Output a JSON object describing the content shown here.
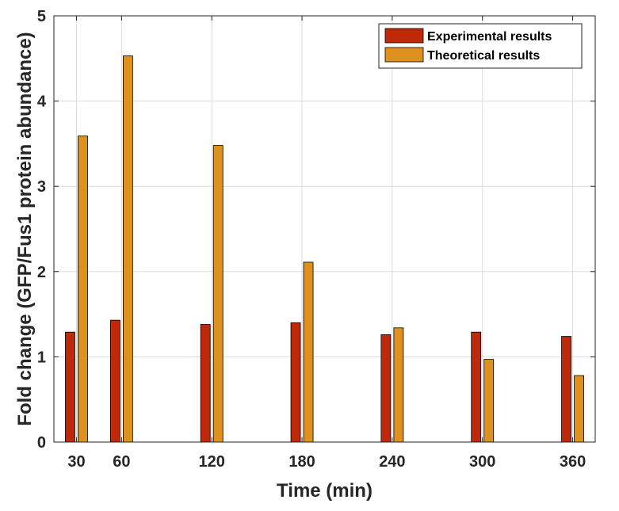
{
  "chart_data": {
    "type": "bar",
    "categories": [
      "30",
      "60",
      "120",
      "180",
      "240",
      "300",
      "360"
    ],
    "x": [
      30,
      60,
      120,
      180,
      240,
      300,
      360
    ],
    "series": [
      {
        "name": "Experimental results",
        "color": "#c0280a",
        "values": [
          1.29,
          1.43,
          1.38,
          1.4,
          1.26,
          1.29,
          1.24
        ]
      },
      {
        "name": "Theoretical results",
        "color": "#de911e",
        "values": [
          3.59,
          4.53,
          3.48,
          2.11,
          1.34,
          0.97,
          0.78
        ]
      }
    ],
    "xlabel": "Time (min)",
    "ylabel": "Fold change (GFP/Fus1 protein abundance)",
    "ylim": [
      0,
      5
    ],
    "yticks": [
      0,
      1,
      2,
      3,
      4,
      5
    ],
    "grid": true,
    "legend_position": "top-right"
  }
}
